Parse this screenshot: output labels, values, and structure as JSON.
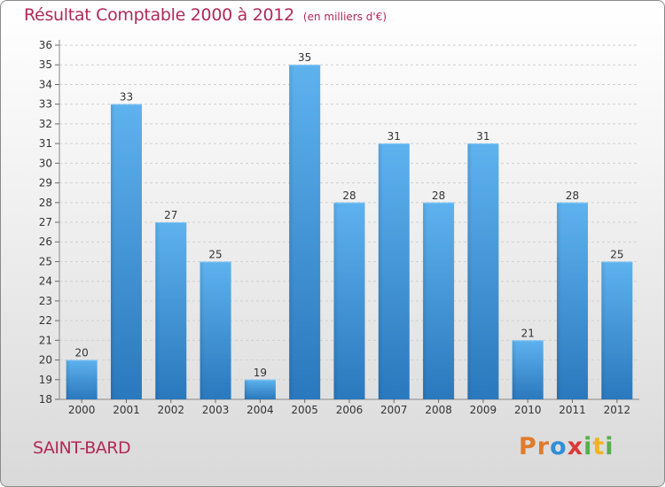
{
  "chart_data": {
    "type": "bar",
    "title": "Résultat Comptable 2000 à 2012",
    "unit": "(en milliers d'€)",
    "categories": [
      "2000",
      "2001",
      "2002",
      "2003",
      "2004",
      "2005",
      "2006",
      "2007",
      "2008",
      "2009",
      "2010",
      "2011",
      "2012"
    ],
    "values": [
      20,
      33,
      27,
      25,
      19,
      35,
      28,
      31,
      28,
      31,
      21,
      28,
      25
    ],
    "ylim": [
      18,
      36
    ],
    "yticks": [
      18,
      19,
      20,
      21,
      22,
      23,
      24,
      25,
      26,
      27,
      28,
      29,
      30,
      31,
      32,
      33,
      34,
      35,
      36
    ],
    "grid": true,
    "xlabel": "",
    "ylabel": "",
    "bar_color": "#3a8fd3"
  },
  "commune": "SAINT-BARD",
  "brand": {
    "letters": [
      "P",
      "r",
      "o",
      "x",
      "i",
      "t",
      "i"
    ],
    "colors": [
      "#e07b2a",
      "#e07b2a",
      "#2f8fd6",
      "#d93a3a",
      "#55b04a",
      "#f0b323",
      "#55b04a"
    ]
  }
}
